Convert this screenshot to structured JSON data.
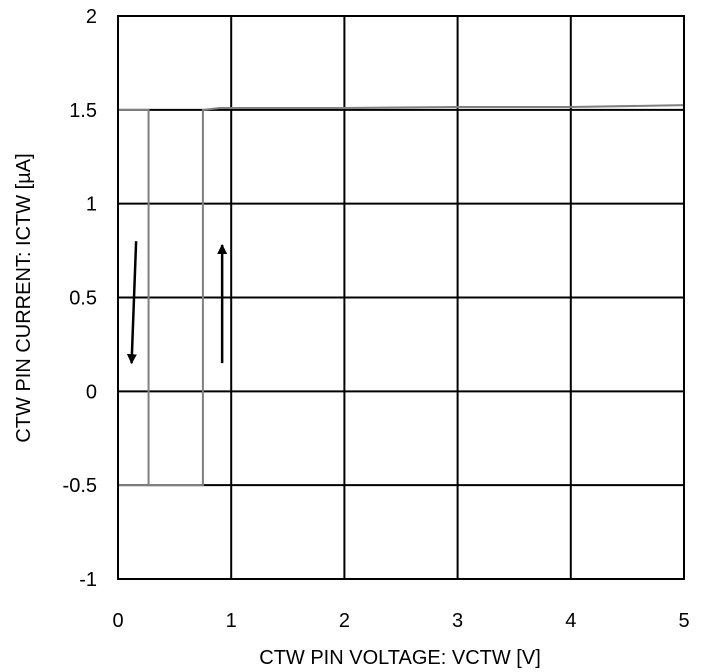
{
  "chart_data": {
    "type": "line",
    "title": "",
    "xlabel": "CTW PIN VOLTAGE: VCTW [V]",
    "ylabel": "CTW PIN CURRENT: ICTW [µA]",
    "xlim": [
      0,
      5
    ],
    "ylim": [
      -1,
      2
    ],
    "x_ticks": [
      0,
      1,
      2,
      3,
      4,
      5
    ],
    "x_tick_labels": [
      "0",
      "1",
      "2",
      "3",
      "4",
      "5"
    ],
    "y_ticks": [
      -1,
      -0.5,
      0,
      0.5,
      1,
      1.5,
      2
    ],
    "y_tick_labels": [
      "-1",
      "-0.5",
      "0",
      "0.5",
      "1",
      "1.5",
      "2"
    ],
    "grid": true,
    "colors": {
      "curve": "#808080",
      "grid": "#000000",
      "arrow": "#000000"
    },
    "series": [
      {
        "x": [
          0,
          0.75,
          0.75,
          0.9,
          2,
          3,
          4,
          5
        ],
        "y": [
          -0.5,
          -0.5,
          1.5,
          1.51,
          1.51,
          1.515,
          1.515,
          1.525
        ]
      },
      {
        "x": [
          0,
          0.27,
          0.27,
          0.75
        ],
        "y": [
          1.5,
          1.5,
          -0.5,
          -0.5
        ]
      }
    ],
    "annotations": [
      {
        "type": "arrow",
        "direction": "down",
        "x": [
          0.16,
          0.12
        ],
        "y": [
          0.8,
          0.15
        ]
      },
      {
        "type": "arrow",
        "direction": "up",
        "x": [
          0.92,
          0.92
        ],
        "y": [
          0.15,
          0.78
        ]
      }
    ]
  }
}
